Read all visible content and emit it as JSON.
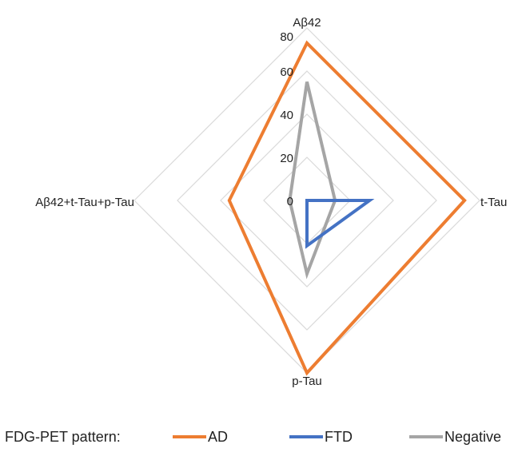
{
  "chart_data": {
    "type": "radar",
    "axes": [
      "Aβ42",
      "t-Tau",
      "p-Tau",
      "Aβ42+t-Tau+p-Tau"
    ],
    "rlim": [
      0,
      80
    ],
    "ticks": [
      "0",
      "20",
      "40",
      "60",
      "80"
    ],
    "tick_values": [
      0,
      20,
      40,
      60,
      80
    ],
    "grid": true,
    "legend_title": "FDG-PET pattern:",
    "legend_position": "bottom",
    "series": [
      {
        "name": "AD",
        "color": "#ED7D31",
        "values": [
          73,
          73,
          80,
          36
        ]
      },
      {
        "name": "FTD",
        "color": "#4472C4",
        "values": [
          0,
          29,
          21,
          0
        ]
      },
      {
        "name": "Negative",
        "color": "#A5A5A5",
        "values": [
          55,
          13,
          34,
          8
        ]
      }
    ]
  }
}
